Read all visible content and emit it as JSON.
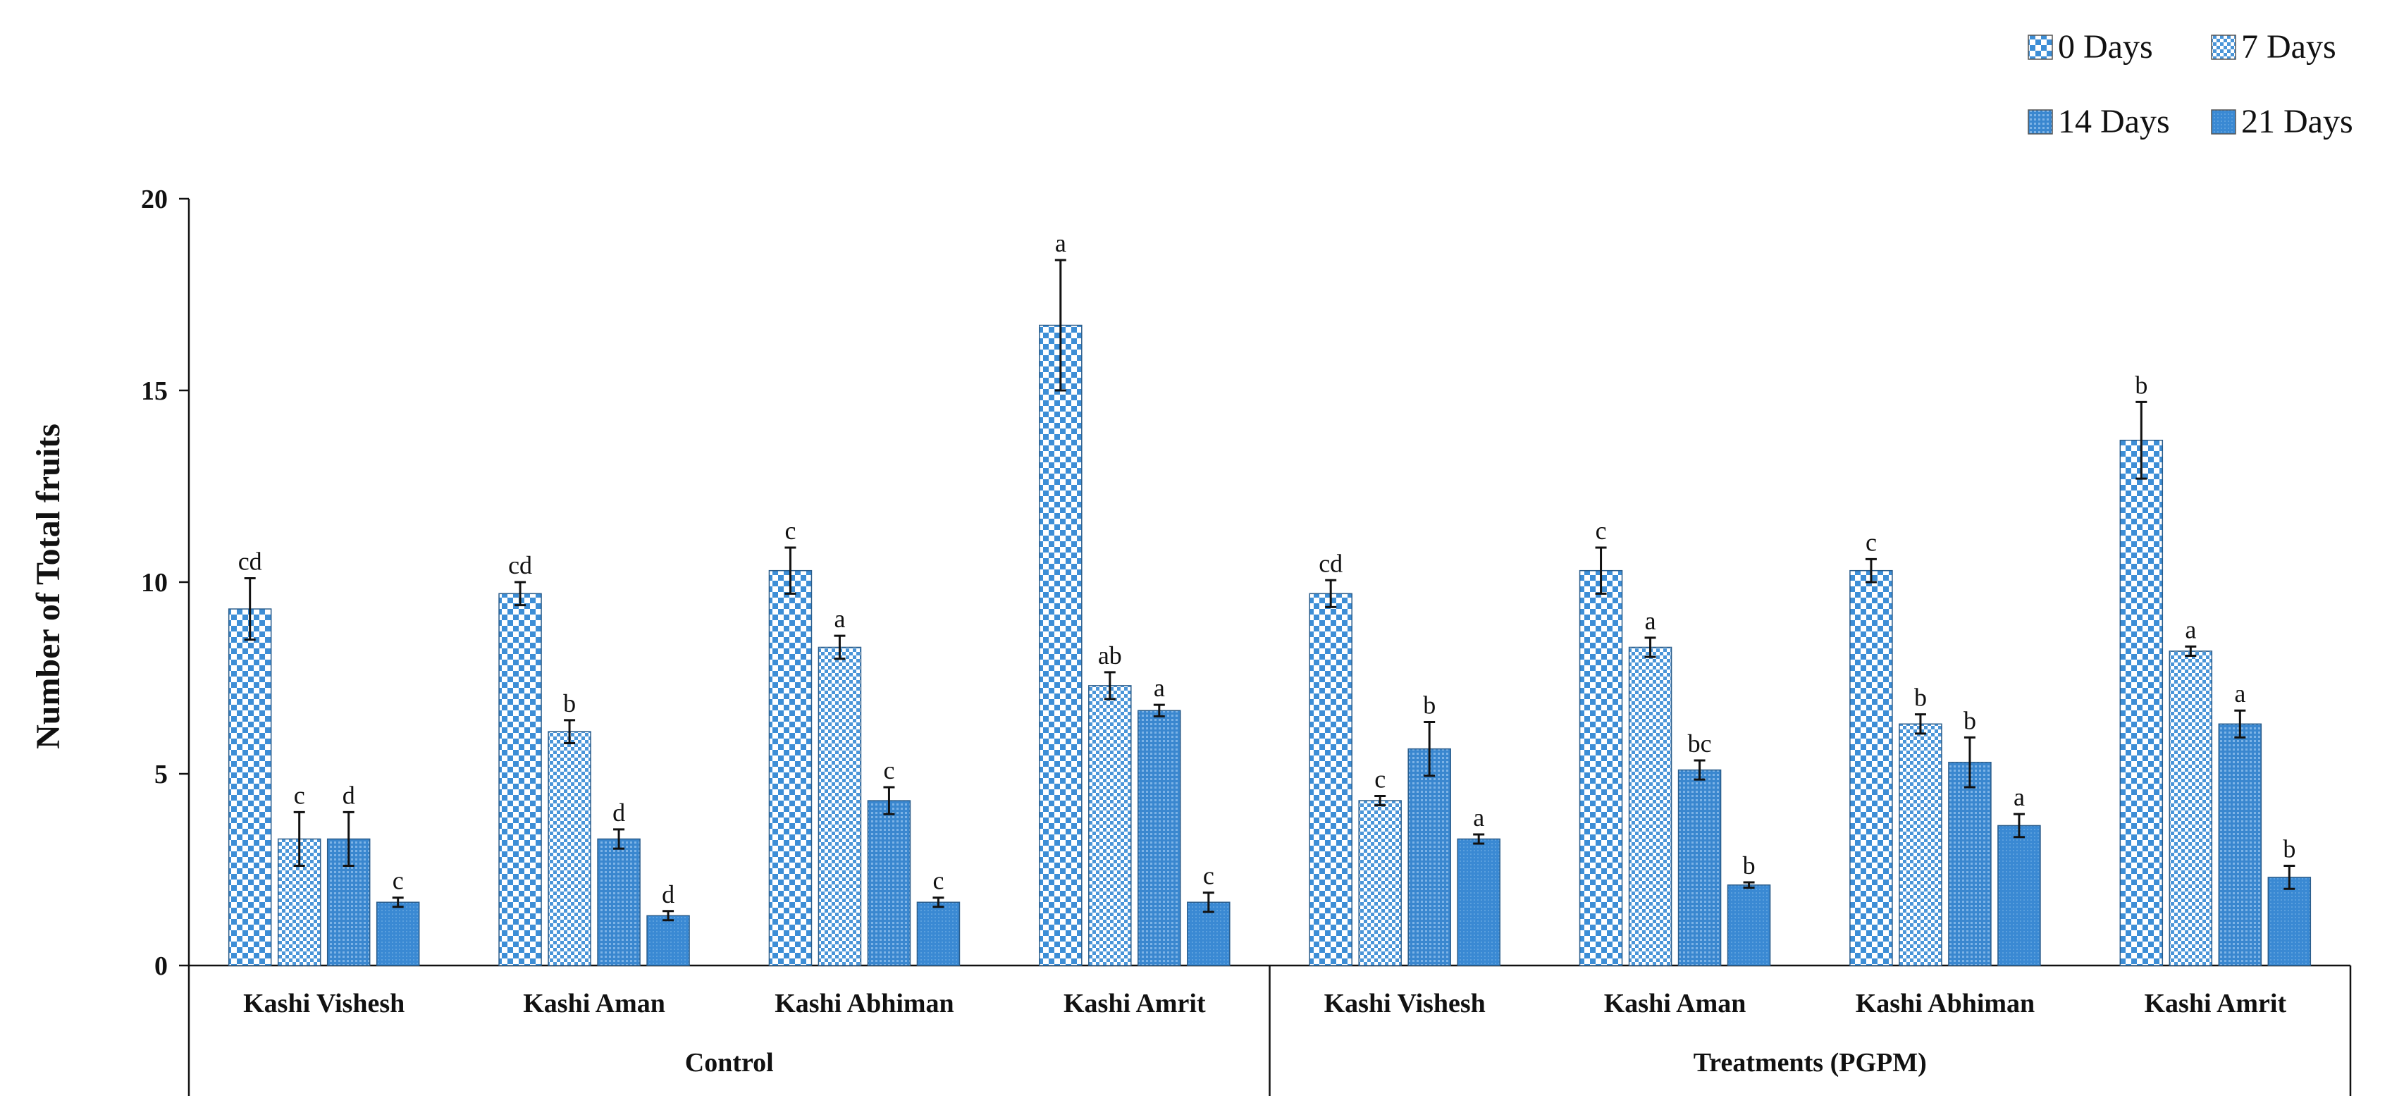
{
  "chart_data": {
    "type": "bar",
    "ylabel": "Number of Total fruits",
    "ylim": [
      0,
      20
    ],
    "yticks": [
      0,
      5,
      10,
      15,
      20
    ],
    "legend_position": "top-right",
    "grid": false,
    "groups": [
      {
        "name": "Control",
        "categories": [
          "Kashi Vishesh",
          "Kashi Aman",
          "Kashi Abhiman",
          "Kashi Amrit"
        ],
        "series": [
          {
            "name": "0 Days",
            "values": [
              9.3,
              9.7,
              10.3,
              16.7
            ],
            "errors": [
              0.8,
              0.3,
              0.6,
              1.7
            ],
            "labels": [
              "cd",
              "cd",
              "c",
              "a"
            ]
          },
          {
            "name": "7 Days",
            "values": [
              3.3,
              6.1,
              8.3,
              7.3
            ],
            "errors": [
              0.7,
              0.3,
              0.3,
              0.35
            ],
            "labels": [
              "c",
              "b",
              "a",
              "ab"
            ]
          },
          {
            "name": "14 Days",
            "values": [
              3.3,
              3.3,
              4.3,
              6.65
            ],
            "errors": [
              0.7,
              0.25,
              0.35,
              0.15
            ],
            "labels": [
              "d",
              "d",
              "c",
              "a"
            ]
          },
          {
            "name": "21 Days",
            "values": [
              1.65,
              1.3,
              1.65,
              1.65
            ],
            "errors": [
              0.12,
              0.12,
              0.12,
              0.25
            ],
            "labels": [
              "c",
              "d",
              "c",
              "c"
            ]
          }
        ]
      },
      {
        "name": "Treatments   (PGPM)",
        "categories": [
          "Kashi Vishesh",
          "Kashi Aman",
          "Kashi Abhiman",
          "Kashi Amrit"
        ],
        "series": [
          {
            "name": "0 Days",
            "values": [
              9.7,
              10.3,
              10.3,
              13.7
            ],
            "errors": [
              0.35,
              0.6,
              0.3,
              1.0
            ],
            "labels": [
              "cd",
              "c",
              "c",
              "b"
            ]
          },
          {
            "name": "7 Days",
            "values": [
              4.3,
              8.3,
              6.3,
              8.2
            ],
            "errors": [
              0.12,
              0.25,
              0.25,
              0.12
            ],
            "labels": [
              "c",
              "a",
              "b",
              "a"
            ]
          },
          {
            "name": "14 Days",
            "values": [
              5.65,
              5.1,
              5.3,
              6.3
            ],
            "errors": [
              0.7,
              0.25,
              0.65,
              0.35
            ],
            "labels": [
              "b",
              "bc",
              "b",
              "a"
            ]
          },
          {
            "name": "21 Days",
            "values": [
              3.3,
              2.1,
              3.65,
              2.3
            ],
            "errors": [
              0.12,
              0.07,
              0.3,
              0.3
            ],
            "labels": [
              "a",
              "b",
              "a",
              "b"
            ]
          }
        ]
      }
    ]
  },
  "colors": {
    "0 Days": "#3d8ed6",
    "7 Days": "#3d8ed6",
    "14 Days": "#3d8ed6",
    "21 Days": "#3d8ed6",
    "pattern_light": "#ffffff",
    "axis": "#111111"
  }
}
